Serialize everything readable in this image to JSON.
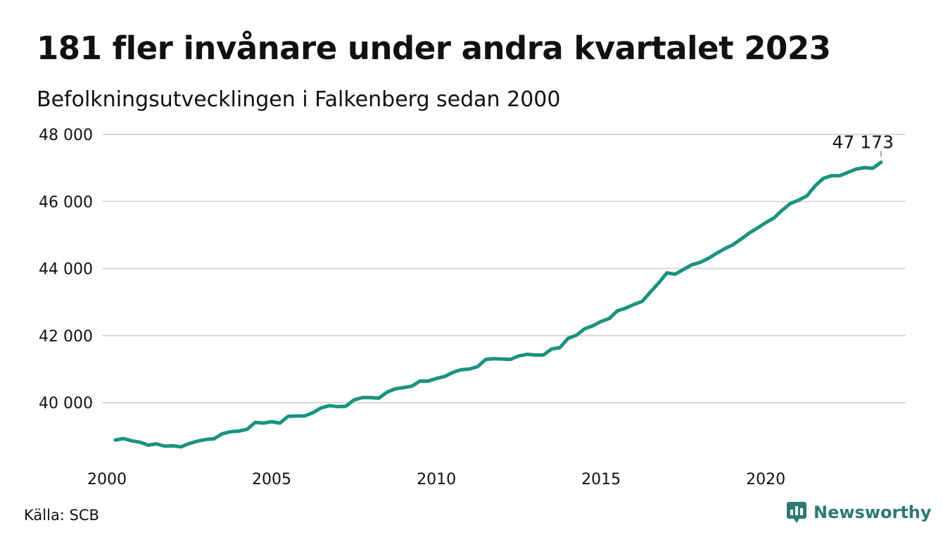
{
  "header": {
    "title": "181 fler invånare under andra kvartalet 2023",
    "subtitle": "Befolkningsutvecklingen i Falkenberg sedan 2000"
  },
  "footer": {
    "source": "Källa: SCB",
    "brand": "Newsworthy"
  },
  "colors": {
    "line": "#1a9380",
    "grid": "#d9d9d9",
    "brand": "#2e7a72"
  },
  "chart_data": {
    "type": "line",
    "title": "181 fler invånare under andra kvartalet 2023",
    "subtitle": "Befolkningsutvecklingen i Falkenberg sedan 2000",
    "xlabel": "",
    "ylabel": "",
    "xlim": [
      2000,
      2023.5
    ],
    "ylim": [
      38300,
      48000
    ],
    "grid": true,
    "legend": "none",
    "x_ticks": [
      {
        "value": 2000,
        "label": "2000"
      },
      {
        "value": 2005,
        "label": "2005"
      },
      {
        "value": 2010,
        "label": "2010"
      },
      {
        "value": 2015,
        "label": "2015"
      },
      {
        "value": 2020,
        "label": "2020"
      }
    ],
    "y_ticks": [
      {
        "value": 40000,
        "label": "40 000"
      },
      {
        "value": 42000,
        "label": "42 000"
      },
      {
        "value": 44000,
        "label": "44 000"
      },
      {
        "value": 46000,
        "label": "46 000"
      },
      {
        "value": 48000,
        "label": "48 000"
      }
    ],
    "end_label": "47 173",
    "series": [
      {
        "x": [
          2000.25,
          2000.5,
          2000.75,
          2001.0,
          2001.25,
          2001.5,
          2001.75,
          2002.0,
          2002.25,
          2002.5,
          2002.75,
          2003.0,
          2003.25,
          2003.5,
          2003.75,
          2004.0,
          2004.25,
          2004.5,
          2004.75,
          2005.0,
          2005.25,
          2005.5,
          2005.75,
          2006.0,
          2006.25,
          2006.5,
          2006.75,
          2007.0,
          2007.25,
          2007.5,
          2007.75,
          2008.0,
          2008.25,
          2008.5,
          2008.75,
          2009.0,
          2009.25,
          2009.5,
          2009.75,
          2010.0,
          2010.25,
          2010.5,
          2010.75,
          2011.0,
          2011.25,
          2011.5,
          2011.75,
          2012.0,
          2012.25,
          2012.5,
          2012.75,
          2013.0,
          2013.25,
          2013.5,
          2013.75,
          2014.0,
          2014.25,
          2014.5,
          2014.75,
          2015.0,
          2015.25,
          2015.5,
          2015.75,
          2016.0,
          2016.25,
          2016.5,
          2016.75,
          2017.0,
          2017.25,
          2017.5,
          2017.75,
          2018.0,
          2018.25,
          2018.5,
          2018.75,
          2019.0,
          2019.25,
          2019.5,
          2019.75,
          2020.0,
          2020.25,
          2020.5,
          2020.75,
          2021.0,
          2021.25,
          2021.5,
          2021.75,
          2022.0,
          2022.25,
          2022.5,
          2022.75,
          2023.0,
          2023.25,
          2023.5
        ],
        "values": [
          38880,
          38930,
          38860,
          38820,
          38730,
          38770,
          38700,
          38710,
          38680,
          38780,
          38850,
          38900,
          38920,
          39070,
          39130,
          39150,
          39200,
          39410,
          39390,
          39430,
          39390,
          39590,
          39600,
          39600,
          39700,
          39840,
          39910,
          39880,
          39890,
          40080,
          40150,
          40150,
          40130,
          40310,
          40410,
          40450,
          40490,
          40640,
          40640,
          40720,
          40780,
          40900,
          40980,
          41000,
          41070,
          41290,
          41310,
          41300,
          41290,
          41390,
          41440,
          41420,
          41420,
          41600,
          41640,
          41920,
          42010,
          42200,
          42290,
          42420,
          42510,
          42740,
          42820,
          42930,
          43020,
          43300,
          43570,
          43870,
          43830,
          43970,
          44110,
          44180,
          44300,
          44450,
          44590,
          44710,
          44880,
          45060,
          45210,
          45370,
          45510,
          45740,
          45940,
          46040,
          46170,
          46470,
          46690,
          46770,
          46770,
          46870,
          46970,
          47010,
          46990,
          47173
        ]
      }
    ]
  }
}
